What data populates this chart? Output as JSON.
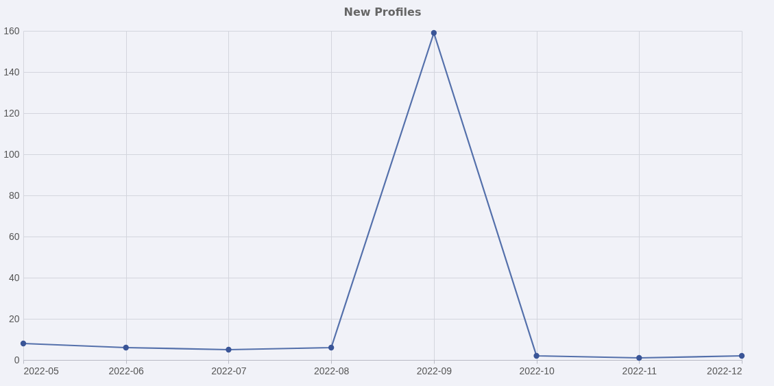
{
  "chart_data": {
    "type": "line",
    "title": "New Profiles",
    "categories": [
      "2022-05",
      "2022-06",
      "2022-07",
      "2022-08",
      "2022-09",
      "2022-10",
      "2022-11",
      "2022-12"
    ],
    "series": [
      {
        "color": "#5470ab",
        "values": [
          8,
          6,
          5,
          6,
          159,
          2,
          1,
          2
        ]
      }
    ],
    "ylim": [
      0,
      160
    ],
    "yticks": [
      0,
      20,
      40,
      60,
      80,
      100,
      120,
      140,
      160
    ],
    "grid": true,
    "marker": "circle",
    "line_style": "solid"
  }
}
